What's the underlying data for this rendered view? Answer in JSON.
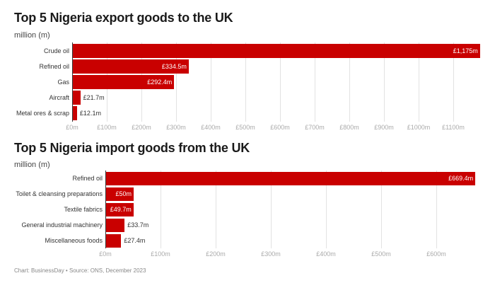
{
  "chart_data": [
    {
      "type": "bar",
      "orientation": "horizontal",
      "title": "Top 5 Nigeria export goods to the UK",
      "subtitle": "million (m)",
      "categories": [
        "Crude oil",
        "Refined oil",
        "Gas",
        "Aircraft",
        "Metal ores & scrap"
      ],
      "values": [
        1175,
        334.5,
        292.4,
        21.7,
        12.1
      ],
      "value_labels": [
        "£1,175m",
        "£334.5m",
        "£292.4m",
        "£21.7m",
        "£12.1m"
      ],
      "xlabel": "",
      "ylabel": "",
      "xlim": [
        0,
        1175
      ],
      "ticks": [
        "£0m",
        "£100m",
        "£200m",
        "£300m",
        "£400m",
        "£500m",
        "£600m",
        "£700m",
        "£800m",
        "£900m",
        "£1000m",
        "£1100m"
      ],
      "grid": true,
      "color": "#c90000"
    },
    {
      "type": "bar",
      "orientation": "horizontal",
      "title": "Top 5 Nigeria import goods from the UK",
      "subtitle": "million (m)",
      "categories": [
        "Refined oil",
        "Toilet & cleansing preparations",
        "Textile fabrics",
        "General industrial machinery",
        "Miscellaneous foods"
      ],
      "values": [
        669.4,
        50,
        49.7,
        33.7,
        27.4
      ],
      "value_labels": [
        "£669.4m",
        "£50m",
        "£49.7m",
        "£33.7m",
        "£27.4m"
      ],
      "xlabel": "",
      "ylabel": "",
      "xlim": [
        0,
        669.4
      ],
      "ticks": [
        "£0m",
        "£100m",
        "£200m",
        "£300m",
        "£400m",
        "£500m",
        "£600m"
      ],
      "grid": true,
      "color": "#c90000"
    }
  ],
  "footer": "Chart: BusinessDay • Source: ONS, December 2023"
}
